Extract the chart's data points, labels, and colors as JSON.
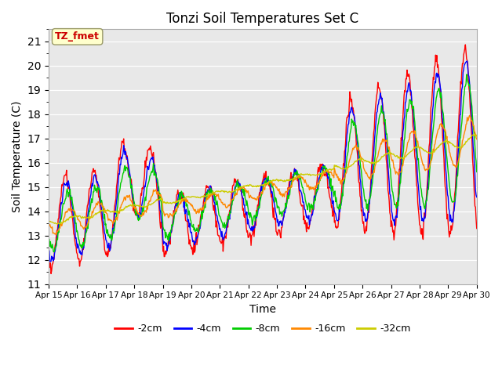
{
  "title": "Tonzi Soil Temperatures Set C",
  "xlabel": "Time",
  "ylabel": "Soil Temperature (C)",
  "ylim": [
    11.0,
    21.5
  ],
  "yticks": [
    11.0,
    12.0,
    13.0,
    14.0,
    15.0,
    16.0,
    17.0,
    18.0,
    19.0,
    20.0,
    21.0
  ],
  "bg_color": "#e8e8e8",
  "plot_bg": "#e8e8e8",
  "annotation_text": "TZ_fmet",
  "annotation_color": "#cc0000",
  "annotation_bg": "#ffffcc",
  "annotation_border": "#999966",
  "legend_entries": [
    "-2cm",
    "-4cm",
    "-8cm",
    "-16cm",
    "-32cm"
  ],
  "line_colors": [
    "#ff0000",
    "#0000ff",
    "#00cc00",
    "#ff8800",
    "#cccc00"
  ],
  "x_tick_labels": [
    "Apr 15",
    "Apr 16",
    "Apr 17",
    "Apr 18",
    "Apr 19",
    "Apr 20",
    "Apr 21",
    "Apr 22",
    "Apr 23",
    "Apr 24",
    "Apr 25",
    "Apr 26",
    "Apr 27",
    "Apr 28",
    "Apr 29",
    "Apr 30"
  ]
}
